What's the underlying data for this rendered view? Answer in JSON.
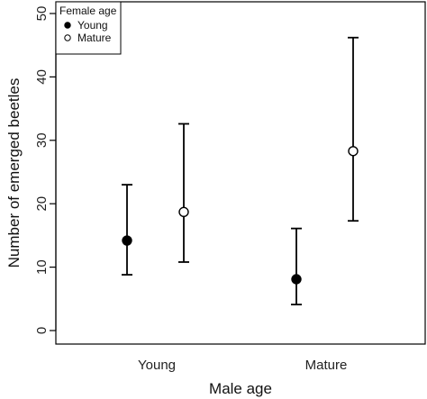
{
  "chart_data": {
    "type": "scatter",
    "xlabel": "Male age",
    "ylabel": "Number of emerged beetles",
    "categories": [
      "Young",
      "Mature"
    ],
    "ylim": [
      0,
      50
    ],
    "yticks": [
      0,
      10,
      20,
      30,
      40,
      50
    ],
    "error_bars": true,
    "legend": {
      "title": "Female age",
      "position": "top-left"
    },
    "series": [
      {
        "name": "Young",
        "marker": "filled-circle",
        "color": "#000000",
        "values": [
          14.2,
          8.1
        ],
        "lower": [
          8.8,
          4.1
        ],
        "upper": [
          23.0,
          16.1
        ]
      },
      {
        "name": "Mature",
        "marker": "open-circle",
        "color": "#000000",
        "values": [
          18.7,
          28.3
        ],
        "lower": [
          10.8,
          17.3
        ],
        "upper": [
          32.6,
          46.2
        ]
      }
    ]
  }
}
